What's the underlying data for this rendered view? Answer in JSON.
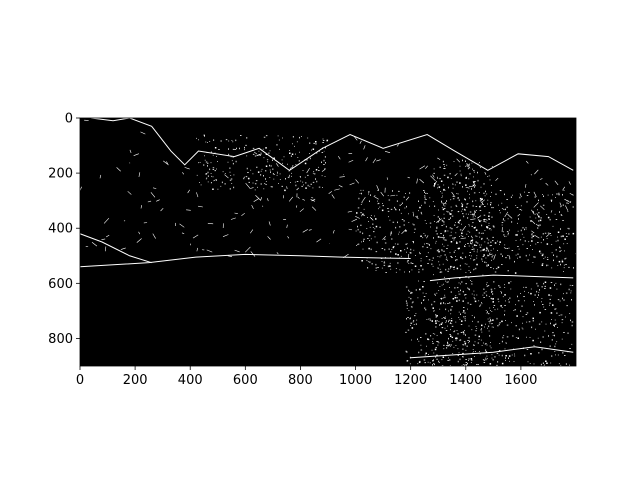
{
  "chart_data": {
    "type": "heatmap",
    "description_colormap": "binary (black background, white edge pixels)",
    "title": "",
    "xlabel": "",
    "ylabel": "",
    "xlim": [
      0,
      1800
    ],
    "ylim": [
      900,
      0
    ],
    "y_axis_inverted": true,
    "x_ticks": [
      0,
      200,
      400,
      600,
      800,
      1000,
      1200,
      1400,
      1600
    ],
    "y_ticks": [
      0,
      200,
      400,
      600,
      800
    ],
    "grid": false,
    "legend": "none",
    "colors": {
      "background": "#000000",
      "edge": "#ffffff"
    },
    "edge_features": {
      "mountain_ridge": [
        [
          40,
          0
        ],
        [
          120,
          10
        ],
        [
          180,
          0
        ],
        [
          260,
          30
        ],
        [
          330,
          120
        ],
        [
          380,
          170
        ],
        [
          430,
          120
        ],
        [
          560,
          140
        ],
        [
          650,
          110
        ],
        [
          760,
          190
        ],
        [
          880,
          110
        ],
        [
          980,
          60
        ],
        [
          1100,
          110
        ],
        [
          1260,
          60
        ],
        [
          1360,
          120
        ],
        [
          1480,
          190
        ],
        [
          1590,
          130
        ],
        [
          1700,
          140
        ],
        [
          1790,
          190
        ]
      ],
      "shoreline_left": [
        [
          0,
          540
        ],
        [
          250,
          525
        ],
        [
          420,
          505
        ],
        [
          600,
          495
        ],
        [
          800,
          500
        ],
        [
          950,
          505
        ],
        [
          1200,
          510
        ]
      ],
      "shoreline_right": [
        [
          1270,
          590
        ],
        [
          1360,
          580
        ],
        [
          1500,
          570
        ],
        [
          1650,
          575
        ],
        [
          1790,
          580
        ]
      ],
      "lake_bottom_right": [
        [
          1200,
          870
        ],
        [
          1350,
          860
        ],
        [
          1500,
          850
        ],
        [
          1650,
          830
        ],
        [
          1790,
          850
        ]
      ],
      "left_slope": [
        [
          0,
          420
        ],
        [
          80,
          450
        ],
        [
          180,
          500
        ],
        [
          260,
          525
        ]
      ],
      "dense_regions": [
        {
          "x": [
            1280,
            1500
          ],
          "y": [
            150,
            900
          ]
        },
        {
          "x": [
            420,
            900
          ],
          "y": [
            60,
            260
          ]
        },
        {
          "x": [
            1000,
            1790
          ],
          "y": [
            260,
            560
          ]
        },
        {
          "x": [
            1180,
            1790
          ],
          "y": [
            590,
            900
          ]
        }
      ]
    }
  }
}
